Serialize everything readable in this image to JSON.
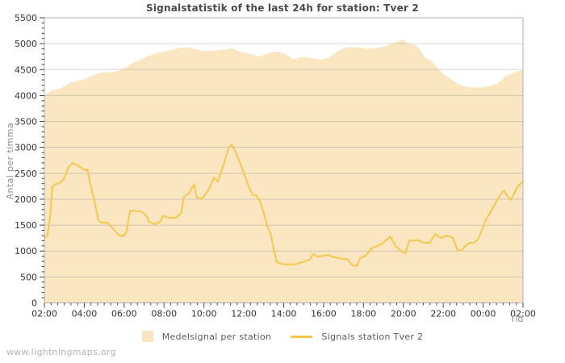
{
  "watermark": "www.lightningmaps.org",
  "chart_data": {
    "type": "area+line",
    "title": "Signalstatistik of the last 24h for station: Tver 2",
    "xlabel": "Tid",
    "ylabel": "Antal per timma",
    "ylim": [
      0,
      5500
    ],
    "ytick_step": 500,
    "x_hours": 24,
    "x_start_time": "02:00",
    "grid": "horizontal",
    "legend_position": "bottom-center",
    "xtick_labels": [
      "02:00",
      "04:00",
      "06:00",
      "08:00",
      "10:00",
      "12:00",
      "14:00",
      "16:00",
      "18:00",
      "20:00",
      "22:00",
      "00:00",
      "02:00"
    ],
    "ytick_labels": [
      "0",
      "500",
      "1000",
      "1500",
      "2000",
      "2500",
      "3000",
      "3500",
      "4000",
      "4500",
      "5000",
      "5500"
    ],
    "series": [
      {
        "name": "Medelsignal per station",
        "type": "area",
        "color": "#FAE7C2",
        "points": [
          [
            0,
            4000
          ],
          [
            0.4,
            4105
          ],
          [
            0.8,
            4130
          ],
          [
            1.2,
            4235
          ],
          [
            1.6,
            4285
          ],
          [
            2.0,
            4310
          ],
          [
            2.4,
            4390
          ],
          [
            2.8,
            4440
          ],
          [
            3.2,
            4450
          ],
          [
            3.6,
            4465
          ],
          [
            4.0,
            4525
          ],
          [
            4.4,
            4620
          ],
          [
            4.9,
            4700
          ],
          [
            5.3,
            4775
          ],
          [
            5.7,
            4825
          ],
          [
            6.1,
            4855
          ],
          [
            6.5,
            4900
          ],
          [
            6.9,
            4925
          ],
          [
            7.3,
            4925
          ],
          [
            7.7,
            4880
          ],
          [
            8.1,
            4855
          ],
          [
            8.5,
            4865
          ],
          [
            8.9,
            4880
          ],
          [
            9.3,
            4905
          ],
          [
            9.45,
            4915
          ],
          [
            9.7,
            4855
          ],
          [
            10.1,
            4825
          ],
          [
            10.5,
            4775
          ],
          [
            10.75,
            4750
          ],
          [
            11.3,
            4825
          ],
          [
            11.7,
            4850
          ],
          [
            12.1,
            4800
          ],
          [
            12.5,
            4695
          ],
          [
            12.9,
            4745
          ],
          [
            13.4,
            4720
          ],
          [
            13.8,
            4695
          ],
          [
            14.2,
            4720
          ],
          [
            14.6,
            4825
          ],
          [
            15.0,
            4910
          ],
          [
            15.4,
            4935
          ],
          [
            15.8,
            4925
          ],
          [
            16.2,
            4900
          ],
          [
            16.6,
            4915
          ],
          [
            17.0,
            4940
          ],
          [
            17.4,
            4990
          ],
          [
            17.8,
            5060
          ],
          [
            18.0,
            5075
          ],
          [
            18.2,
            5000
          ],
          [
            18.6,
            4975
          ],
          [
            18.9,
            4850
          ],
          [
            19.1,
            4720
          ],
          [
            19.4,
            4670
          ],
          [
            19.8,
            4490
          ],
          [
            20.2,
            4360
          ],
          [
            20.6,
            4260
          ],
          [
            21.0,
            4180
          ],
          [
            21.4,
            4155
          ],
          [
            21.9,
            4155
          ],
          [
            22.3,
            4180
          ],
          [
            22.7,
            4230
          ],
          [
            23.1,
            4360
          ],
          [
            23.5,
            4435
          ],
          [
            23.8,
            4475
          ],
          [
            24,
            4485
          ]
        ]
      },
      {
        "name": "Signals station Tver 2",
        "type": "line",
        "color": "#F5C84C",
        "points": [
          [
            0,
            1250
          ],
          [
            0.15,
            1300
          ],
          [
            0.3,
            1700
          ],
          [
            0.4,
            2240
          ],
          [
            0.55,
            2290
          ],
          [
            0.8,
            2320
          ],
          [
            1.0,
            2400
          ],
          [
            1.2,
            2610
          ],
          [
            1.4,
            2700
          ],
          [
            1.6,
            2670
          ],
          [
            1.8,
            2620
          ],
          [
            2.0,
            2560
          ],
          [
            2.15,
            2580
          ],
          [
            2.3,
            2300
          ],
          [
            2.5,
            1990
          ],
          [
            2.7,
            1600
          ],
          [
            2.85,
            1550
          ],
          [
            3.2,
            1545
          ],
          [
            3.45,
            1430
          ],
          [
            3.7,
            1320
          ],
          [
            3.95,
            1285
          ],
          [
            4.1,
            1350
          ],
          [
            4.3,
            1780
          ],
          [
            4.6,
            1775
          ],
          [
            4.9,
            1755
          ],
          [
            5.1,
            1690
          ],
          [
            5.25,
            1560
          ],
          [
            5.55,
            1520
          ],
          [
            5.8,
            1560
          ],
          [
            5.95,
            1690
          ],
          [
            6.1,
            1650
          ],
          [
            6.3,
            1640
          ],
          [
            6.6,
            1645
          ],
          [
            6.85,
            1730
          ],
          [
            7.0,
            2050
          ],
          [
            7.25,
            2110
          ],
          [
            7.5,
            2290
          ],
          [
            7.65,
            2030
          ],
          [
            7.9,
            2005
          ],
          [
            8.2,
            2160
          ],
          [
            8.5,
            2420
          ],
          [
            8.7,
            2340
          ],
          [
            9.0,
            2690
          ],
          [
            9.25,
            3000
          ],
          [
            9.4,
            3050
          ],
          [
            9.6,
            2900
          ],
          [
            9.85,
            2660
          ],
          [
            10.1,
            2400
          ],
          [
            10.3,
            2190
          ],
          [
            10.45,
            2080
          ],
          [
            10.65,
            2070
          ],
          [
            10.8,
            1960
          ],
          [
            11.0,
            1740
          ],
          [
            11.2,
            1450
          ],
          [
            11.35,
            1340
          ],
          [
            11.5,
            1030
          ],
          [
            11.65,
            790
          ],
          [
            11.9,
            750
          ],
          [
            12.2,
            745
          ],
          [
            12.5,
            740
          ],
          [
            12.75,
            765
          ],
          [
            13.0,
            790
          ],
          [
            13.3,
            835
          ],
          [
            13.5,
            950
          ],
          [
            13.7,
            890
          ],
          [
            13.95,
            905
          ],
          [
            14.2,
            925
          ],
          [
            14.5,
            885
          ],
          [
            14.8,
            860
          ],
          [
            15.0,
            850
          ],
          [
            15.2,
            840
          ],
          [
            15.45,
            725
          ],
          [
            15.65,
            710
          ],
          [
            15.85,
            870
          ],
          [
            16.1,
            905
          ],
          [
            16.4,
            1050
          ],
          [
            16.9,
            1135
          ],
          [
            17.35,
            1280
          ],
          [
            17.6,
            1100
          ],
          [
            17.9,
            1000
          ],
          [
            18.1,
            955
          ],
          [
            18.3,
            1200
          ],
          [
            18.7,
            1210
          ],
          [
            19.0,
            1160
          ],
          [
            19.3,
            1155
          ],
          [
            19.6,
            1330
          ],
          [
            19.85,
            1250
          ],
          [
            20.2,
            1300
          ],
          [
            20.5,
            1250
          ],
          [
            20.7,
            1020
          ],
          [
            20.9,
            1010
          ],
          [
            21.1,
            1095
          ],
          [
            21.3,
            1155
          ],
          [
            21.55,
            1160
          ],
          [
            21.75,
            1230
          ],
          [
            21.95,
            1410
          ],
          [
            22.15,
            1615
          ],
          [
            22.4,
            1770
          ],
          [
            22.65,
            1950
          ],
          [
            22.9,
            2105
          ],
          [
            23.05,
            2170
          ],
          [
            23.25,
            2040
          ],
          [
            23.4,
            1985
          ],
          [
            23.7,
            2230
          ],
          [
            24,
            2345
          ]
        ]
      }
    ]
  }
}
